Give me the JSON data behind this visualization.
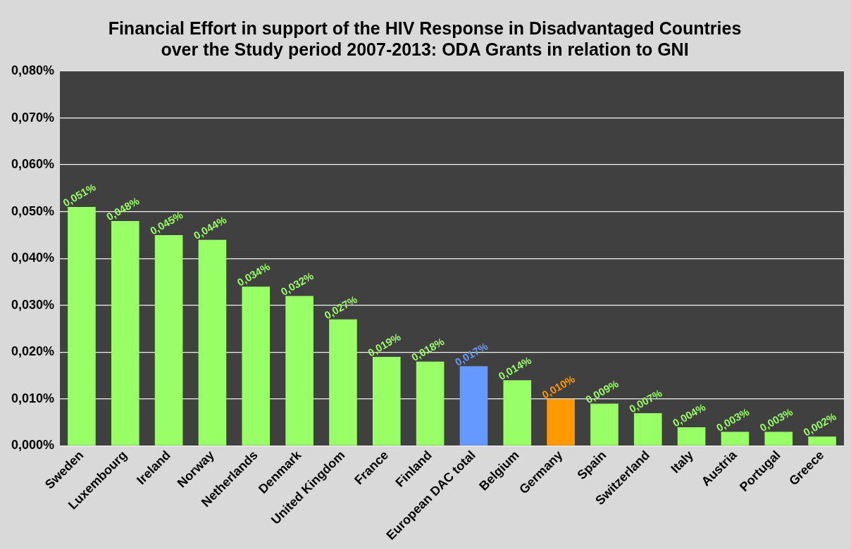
{
  "chart_data": {
    "type": "bar",
    "title": "Financial Effort in support of the HIV Response in Disadvantaged Countries\nover the Study period 2007-2013: ODA Grants in relation to GNI",
    "categories": [
      "Sweden",
      "Luxembourg",
      "Ireland",
      "Norway",
      "Netherlands",
      "Denmark",
      "United Kingdom",
      "France",
      "Finland",
      "European DAC total",
      "Belgium",
      "Germany",
      "Spain",
      "Switzerland",
      "Italy",
      "Austria",
      "Portugal",
      "Greece"
    ],
    "values": [
      0.051,
      0.048,
      0.045,
      0.044,
      0.034,
      0.032,
      0.027,
      0.019,
      0.018,
      0.017,
      0.014,
      0.01,
      0.009,
      0.007,
      0.004,
      0.003,
      0.003,
      0.002
    ],
    "colors": [
      "#99ff66",
      "#99ff66",
      "#99ff66",
      "#99ff66",
      "#99ff66",
      "#99ff66",
      "#99ff66",
      "#99ff66",
      "#99ff66",
      "#6699ff",
      "#99ff66",
      "#ff9900",
      "#99ff66",
      "#99ff66",
      "#99ff66",
      "#99ff66",
      "#99ff66",
      "#99ff66"
    ],
    "value_labels": [
      "0,051%",
      "0,048%",
      "0,045%",
      "0,044%",
      "0,034%",
      "0,032%",
      "0,027%",
      "0,019%",
      "0,018%",
      "0,017%",
      "0,014%",
      "0,010%",
      "0,009%",
      "0,007%",
      "0,004%",
      "0,003%",
      "0,003%",
      "0,002%"
    ],
    "ylim": [
      0,
      0.08
    ],
    "yticks": [
      {
        "value": 0,
        "label": "0,000%"
      },
      {
        "value": 0.01,
        "label": "0,010%"
      },
      {
        "value": 0.02,
        "label": "0,020%"
      },
      {
        "value": 0.03,
        "label": "0,030%"
      },
      {
        "value": 0.04,
        "label": "0,040%"
      },
      {
        "value": 0.05,
        "label": "0,050%"
      },
      {
        "value": 0.06,
        "label": "0,060%"
      },
      {
        "value": 0.07,
        "label": "0,070%"
      },
      {
        "value": 0.08,
        "label": "0,080%"
      }
    ],
    "grid": "y",
    "legend": false
  }
}
